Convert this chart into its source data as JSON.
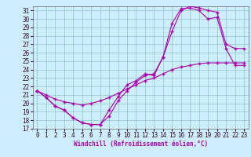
{
  "xlabel": "Windchill (Refroidissement éolien,°C)",
  "background_color": "#cceeff",
  "grid_color": "#99cccc",
  "line_color": "#aa00aa",
  "xlim": [
    -0.5,
    23.5
  ],
  "ylim": [
    17,
    31.5
  ],
  "xticks": [
    0,
    1,
    2,
    3,
    4,
    5,
    6,
    7,
    8,
    9,
    10,
    11,
    12,
    13,
    14,
    15,
    16,
    17,
    18,
    19,
    20,
    21,
    22,
    23
  ],
  "yticks": [
    17,
    18,
    19,
    20,
    21,
    22,
    23,
    24,
    25,
    26,
    27,
    28,
    29,
    30,
    31
  ],
  "curve1_x": [
    0,
    1,
    2,
    3,
    4,
    5,
    6,
    7,
    8,
    9,
    10,
    11,
    12,
    13,
    14,
    15,
    16,
    17,
    18,
    19,
    20,
    21,
    22,
    23
  ],
  "curve1_y": [
    21.5,
    20.7,
    19.7,
    19.2,
    18.3,
    17.7,
    17.5,
    17.5,
    18.5,
    20.3,
    21.5,
    22.5,
    23.3,
    23.5,
    25.5,
    29.5,
    31.2,
    31.3,
    31.0,
    30.0,
    30.2,
    26.5,
    24.5,
    24.5
  ],
  "curve2_x": [
    0,
    1,
    2,
    3,
    4,
    5,
    6,
    7,
    8,
    9,
    10,
    11,
    12,
    13,
    14,
    15,
    16,
    17,
    18,
    19,
    20,
    21,
    22,
    23
  ],
  "curve2_y": [
    21.5,
    20.7,
    19.7,
    19.2,
    18.3,
    17.7,
    17.5,
    17.5,
    19.2,
    20.8,
    22.2,
    22.7,
    23.5,
    23.3,
    25.5,
    28.5,
    31.0,
    31.5,
    31.3,
    31.0,
    30.8,
    27.0,
    26.5,
    26.5
  ],
  "curve3_x": [
    0,
    1,
    2,
    3,
    4,
    5,
    6,
    7,
    8,
    9,
    10,
    11,
    12,
    13,
    14,
    15,
    16,
    17,
    18,
    19,
    20,
    21,
    22,
    23
  ],
  "curve3_y": [
    21.5,
    21.0,
    20.5,
    20.2,
    20.0,
    19.8,
    20.0,
    20.3,
    20.7,
    21.2,
    21.7,
    22.2,
    22.7,
    23.0,
    23.5,
    24.0,
    24.3,
    24.5,
    24.7,
    24.8,
    24.8,
    24.8,
    24.8,
    24.8
  ],
  "marker": "+",
  "markersize": 3,
  "markeredgewidth": 1.0,
  "linewidth": 0.8,
  "tick_fontsize": 5.5,
  "xlabel_fontsize": 5.5
}
